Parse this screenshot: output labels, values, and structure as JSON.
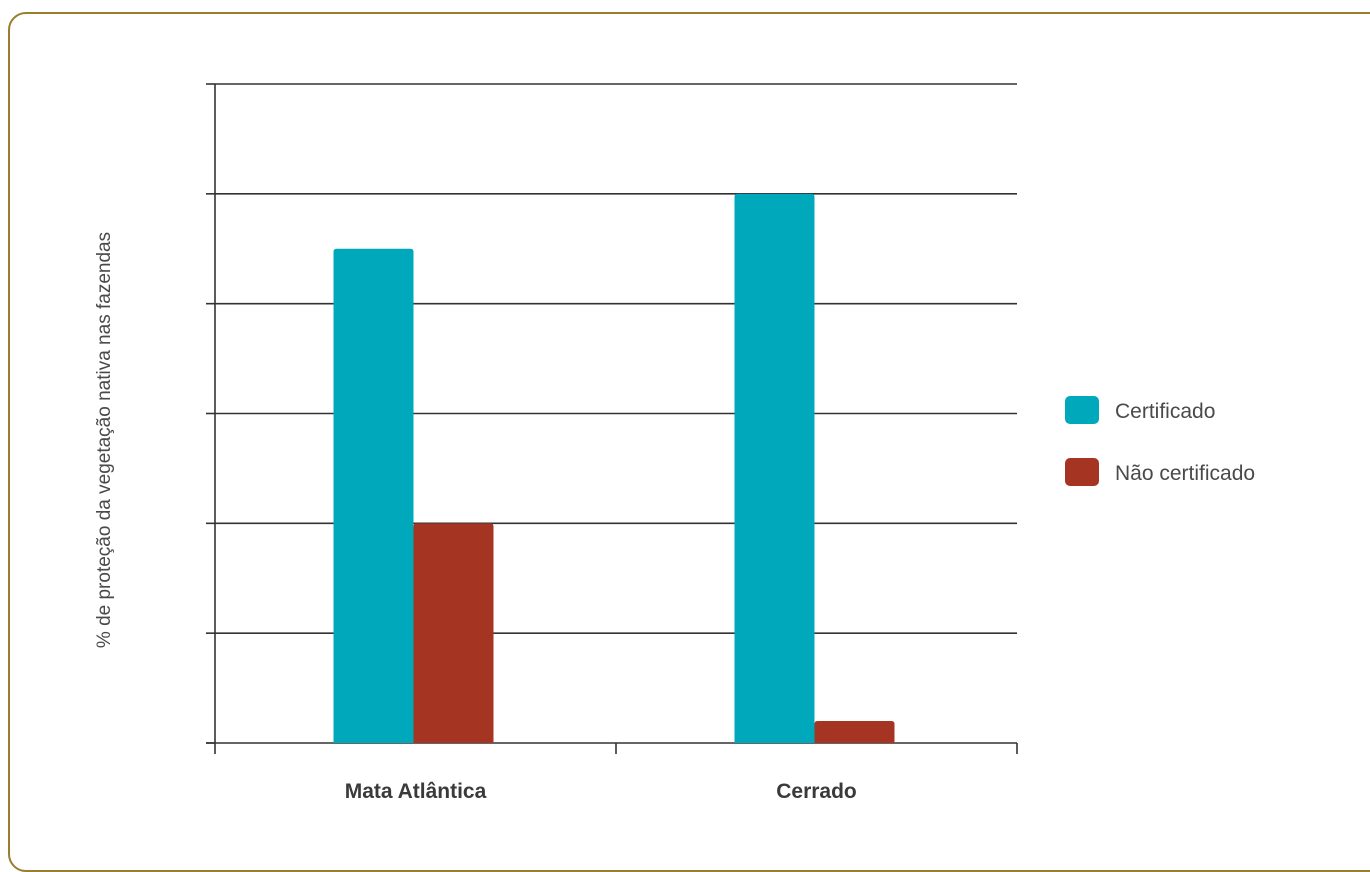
{
  "chart_data": {
    "type": "bar",
    "title": "",
    "xlabel": "",
    "ylabel": "% de proteção da vegetação nativa nas fazendas",
    "categories": [
      "Mata Atlântica",
      "Cerrado"
    ],
    "series": [
      {
        "name": "Certificado",
        "color": "#00a8bb",
        "values": [
          4.5,
          5.0
        ]
      },
      {
        "name": "Não certificado",
        "color": "#a63422",
        "values": [
          2.0,
          0.2
        ]
      }
    ],
    "ylim": [
      0,
      6
    ],
    "y_ticks": [
      0,
      1,
      2,
      3,
      4,
      5,
      6
    ],
    "tick_labels_shown": false,
    "grid": true,
    "legend_position": "right"
  }
}
